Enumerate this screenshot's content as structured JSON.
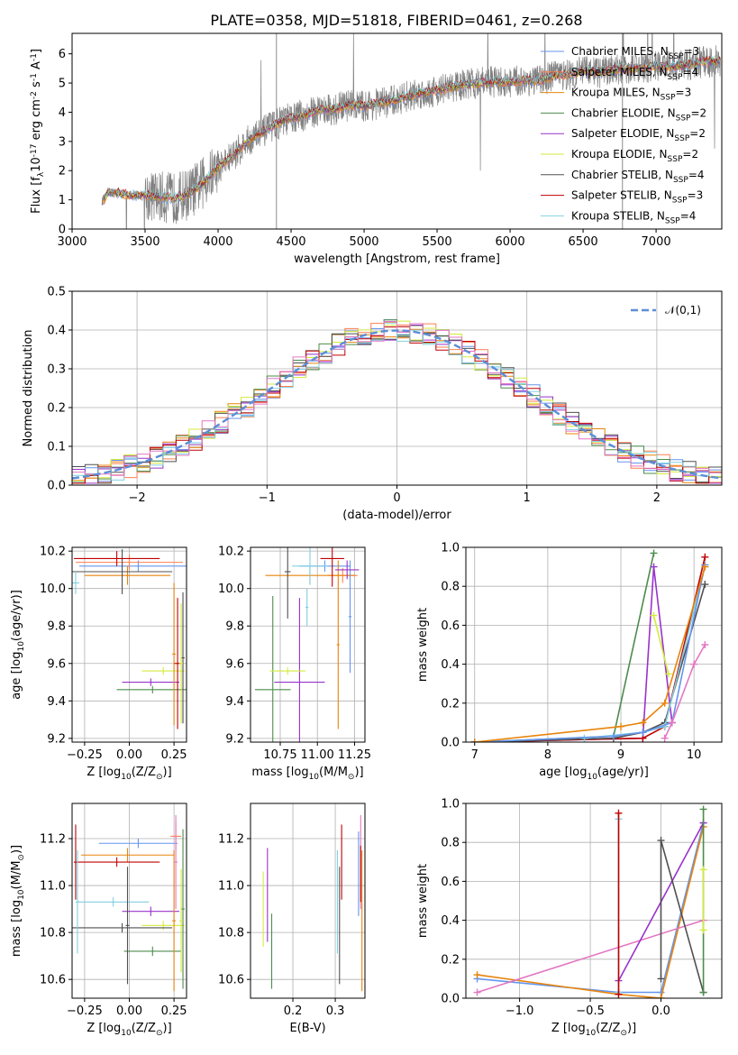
{
  "figure_title": "PLATE=0358, MJD=51818, FIBERID=0461, z=0.268",
  "colors": {
    "chabrier_miles": "#6495ed",
    "salpeter_miles": "#ff7f50",
    "kroupa_miles": "#e8840c",
    "chabrier_elodie": "#4c8c4c",
    "salpeter_elodie": "#9932cc",
    "kroupa_elodie": "#d4ea3c",
    "chabrier_stelib": "#505050",
    "salpeter_stelib": "#c00000",
    "kroupa_stelib": "#80d0e0",
    "normal": "#5b8ed6",
    "pink": "#e377c2"
  },
  "chart_data": [
    {
      "id": "spectrum",
      "type": "line",
      "xlabel": "wavelength [Angstrom, rest frame]",
      "ylabel": "Flux [f$_\\lambda$10$^{-17}$ erg cm$^{-2}$ s$^{-1}$ A$^{-1}$]",
      "xlim": [
        3000,
        7450
      ],
      "ylim": [
        0,
        6.7
      ],
      "xticks": [
        "3000",
        "3500",
        "4000",
        "4500",
        "5000",
        "5500",
        "6000",
        "6500",
        "7000"
      ],
      "yticks": [
        "0",
        "1",
        "2",
        "3",
        "4",
        "5",
        "6"
      ],
      "legend": [
        "Chabrier MILES, N$_{SSP}$=3",
        "Salpeter MILES, N$_{SSP}$=4",
        "Kroupa MILES, N$_{SSP}$=3",
        "Chabrier ELODIE, N$_{SSP}$=2",
        "Salpeter ELODIE, N$_{SSP}$=2",
        "Kroupa ELODIE, N$_{SSP}$=2",
        "Chabrier STELIB, N$_{SSP}$=4",
        "Salpeter STELIB, N$_{SSP}$=3",
        "Kroupa STELIB, N$_{SSP}$=4"
      ],
      "legend_placement": "top-right",
      "model_x": [
        3200,
        3250,
        3300,
        3400,
        3500,
        3600,
        3700,
        3800,
        3900,
        4000,
        4100,
        4200,
        4300,
        4400,
        4500,
        4600,
        4700,
        4800,
        4900,
        5000,
        5100,
        5200,
        5300,
        5400,
        5500,
        5600,
        5700,
        5800,
        5900,
        6000,
        6100,
        6200,
        6300,
        6400,
        6500,
        6600,
        6700,
        6800,
        6900,
        7000,
        7100,
        7200,
        7300,
        7400
      ],
      "model_y": [
        0.9,
        1.25,
        1.25,
        1.15,
        1.15,
        1.1,
        1.05,
        1.2,
        1.6,
        2.1,
        2.5,
        3.0,
        3.3,
        3.6,
        3.8,
        3.9,
        4.1,
        4.1,
        4.25,
        4.2,
        4.3,
        4.4,
        4.55,
        4.65,
        4.75,
        4.85,
        4.95,
        5.0,
        5.05,
        5.0,
        5.1,
        5.05,
        5.25,
        5.3,
        5.4,
        5.35,
        5.45,
        5.5,
        5.5,
        5.6,
        5.55,
        5.6,
        5.7,
        5.75
      ]
    },
    {
      "id": "residuals",
      "type": "line",
      "xlabel": "(data-model)/error",
      "ylabel": "Normed distribution",
      "xlim": [
        -2.5,
        2.5
      ],
      "ylim": [
        0,
        0.5
      ],
      "xticks": [
        "−2",
        "−1",
        "0",
        "1",
        "2"
      ],
      "yticks": [
        "0.0",
        "0.1",
        "0.2",
        "0.3",
        "0.4",
        "0.5"
      ],
      "legend": [
        "$\\mathcal{N}(0,1)$"
      ],
      "legend_placement": "top-right"
    },
    {
      "id": "age_vs_Z",
      "type": "scatter",
      "xlabel": "Z [log$_{10}$(Z/Z$_\\odot$)]",
      "ylabel": "age  [log$_{10}$(age/yr)]",
      "xlim": [
        -0.32,
        0.32
      ],
      "ylim": [
        9.18,
        10.22
      ],
      "xticks": [
        "−0.25",
        "0.00",
        "0.25"
      ],
      "yticks": [
        "9.2",
        "9.4",
        "9.6",
        "9.8",
        "10.0",
        "10.2"
      ],
      "points": [
        {
          "c": "chabrier_miles",
          "x": 0.05,
          "xe": 0.33,
          "y": 10.12,
          "ye": 0.03
        },
        {
          "c": "salpeter_miles",
          "x": 0.0,
          "xe": 0.3,
          "y": 10.14,
          "ye": 0.04
        },
        {
          "c": "kroupa_miles",
          "x": -0.01,
          "xe": 0.24,
          "y": 10.07,
          "ye": 0.05
        },
        {
          "c": "chabrier_elodie",
          "x": 0.13,
          "xe": 0.2,
          "y": 9.46,
          "ye": 0.02
        },
        {
          "c": "salpeter_elodie",
          "x": 0.12,
          "xe": 0.16,
          "y": 9.5,
          "ye": 0.02
        },
        {
          "c": "kroupa_elodie",
          "x": 0.19,
          "xe": 0.12,
          "y": 9.56,
          "ye": 0.02
        },
        {
          "c": "chabrier_stelib",
          "x": -0.04,
          "xe": 0.28,
          "y": 10.09,
          "ye": 0.12
        },
        {
          "c": "salpeter_stelib",
          "x": -0.07,
          "xe": 0.24,
          "y": 10.16,
          "ye": 0.04
        },
        {
          "c": "kroupa_stelib",
          "x": -0.3,
          "xe": 0.02,
          "y": 10.03,
          "ye": 0.06
        },
        {
          "c": "salpeter_stelib",
          "x": 0.27,
          "xe": 0.02,
          "y": 9.6,
          "ye": 0.35
        },
        {
          "c": "chabrier_stelib",
          "x": 0.3,
          "xe": 0.01,
          "y": 9.63,
          "ye": 0.35
        },
        {
          "c": "kroupa_elodie",
          "x": 0.29,
          "xe": 0.01,
          "y": 9.6,
          "ye": 0.32
        },
        {
          "c": "kroupa_miles",
          "x": 0.25,
          "xe": 0.01,
          "y": 9.65,
          "ye": 0.38
        }
      ]
    },
    {
      "id": "age_vs_mass",
      "type": "scatter",
      "xlabel": "mass [log$_{10}$(M/M$_\\odot$)]",
      "ylabel": "",
      "xlim": [
        10.55,
        11.32
      ],
      "ylim": [
        9.18,
        10.22
      ],
      "xticks": [
        "10.75",
        "11.00",
        "11.25"
      ],
      "yticks": [
        "9.2",
        "9.4",
        "9.6",
        "9.8",
        "10.0",
        "10.2"
      ],
      "points": [
        {
          "c": "chabrier_miles",
          "x": 11.05,
          "xe": 0.17,
          "y": 10.12,
          "ye": 0.03
        },
        {
          "c": "salpeter_miles",
          "x": 11.17,
          "xe": 0.1,
          "y": 10.07,
          "ye": 0.04
        },
        {
          "c": "kroupa_miles",
          "x": 10.95,
          "xe": 0.3,
          "y": 10.07,
          "ye": 0.05
        },
        {
          "c": "chabrier_elodie",
          "x": 10.7,
          "xe": 0.12,
          "y": 9.46,
          "ye": 0.5
        },
        {
          "c": "salpeter_elodie",
          "x": 10.88,
          "xe": 0.17,
          "y": 9.5,
          "ye": 0.45
        },
        {
          "c": "kroupa_elodie",
          "x": 10.8,
          "xe": 0.12,
          "y": 9.56,
          "ye": 0.02
        },
        {
          "c": "chabrier_stelib",
          "x": 10.8,
          "xe": 0.02,
          "y": 10.09,
          "ye": 0.25
        },
        {
          "c": "salpeter_stelib",
          "x": 11.1,
          "xe": 0.08,
          "y": 10.16,
          "ye": 0.15
        },
        {
          "c": "kroupa_stelib",
          "x": 10.95,
          "xe": 0.12,
          "y": 10.12,
          "ye": 0.1
        },
        {
          "c": "kroupa_stelib",
          "x": 10.93,
          "xe": 0.01,
          "y": 9.9,
          "ye": 0.1
        },
        {
          "c": "chabrier_miles",
          "x": 11.22,
          "xe": 0.01,
          "y": 9.85,
          "ye": 0.3
        },
        {
          "c": "kroupa_miles",
          "x": 11.14,
          "xe": 0.01,
          "y": 9.7,
          "ye": 0.45
        },
        {
          "c": "salpeter_elodie",
          "x": 11.2,
          "xe": 0.08,
          "y": 10.1,
          "ye": 0.05
        }
      ]
    },
    {
      "id": "weight_vs_age",
      "type": "line",
      "xlabel": "age  [log$_{10}$(age/yr)]",
      "ylabel": "mass weight",
      "xlim": [
        6.88,
        10.38
      ],
      "ylim": [
        0,
        1.0
      ],
      "xticks": [
        "7",
        "8",
        "9",
        "10"
      ],
      "yticks": [
        "0.0",
        "0.2",
        "0.4",
        "0.6",
        "0.8",
        "1.0"
      ],
      "series": [
        {
          "c": "chabrier_elodie",
          "x": [
            7.0,
            8.9,
            9.45
          ],
          "y": [
            0.0,
            0.03,
            0.97
          ]
        },
        {
          "c": "salpeter_elodie",
          "x": [
            7.0,
            9.3,
            9.45,
            9.7
          ],
          "y": [
            0.0,
            0.02,
            0.9,
            0.1
          ]
        },
        {
          "c": "kroupa_elodie",
          "x": [
            9.45,
            9.65
          ],
          "y": [
            0.65,
            0.35
          ]
        },
        {
          "c": "salpeter_stelib",
          "x": [
            7.0,
            9.3,
            9.6,
            10.15
          ],
          "y": [
            0.0,
            0.02,
            0.08,
            0.95
          ]
        },
        {
          "c": "chabrier_stelib",
          "x": [
            7.0,
            8.9,
            9.3,
            9.6,
            10.15
          ],
          "y": [
            0.0,
            0.02,
            0.05,
            0.1,
            0.81
          ]
        },
        {
          "c": "kroupa_stelib",
          "x": [
            8.5,
            9.3,
            9.6,
            10.15
          ],
          "y": [
            0.02,
            0.05,
            0.08,
            0.9
          ]
        },
        {
          "c": "chabrier_miles",
          "x": [
            7.0,
            8.9,
            9.3,
            9.7,
            10.15
          ],
          "y": [
            0.0,
            0.03,
            0.05,
            0.1,
            0.91
          ]
        },
        {
          "c": "kroupa_miles",
          "x": [
            7.0,
            9.0,
            9.3,
            9.6,
            10.15
          ],
          "y": [
            0.0,
            0.08,
            0.1,
            0.2,
            0.9
          ]
        },
        {
          "c": "pink",
          "x": [
            9.6,
            9.7,
            10.0,
            10.15
          ],
          "y": [
            0.02,
            0.1,
            0.4,
            0.5
          ]
        }
      ]
    },
    {
      "id": "mass_vs_Z",
      "type": "scatter",
      "xlabel": "Z [log$_{10}$(Z/Z$_\\odot$)]",
      "ylabel": "mass [log$_{10}$(M/M$_\\odot$)]",
      "xlim": [
        -0.32,
        0.32
      ],
      "ylim": [
        10.52,
        11.35
      ],
      "xticks": [
        "−0.25",
        "0.00",
        "0.25"
      ],
      "yticks": [
        "10.6",
        "10.8",
        "11.0",
        "11.2"
      ],
      "points": [
        {
          "c": "chabrier_miles",
          "x": 0.05,
          "xe": 0.22,
          "y": 11.18,
          "ye": 0.02
        },
        {
          "c": "salpeter_miles",
          "x": 0.26,
          "xe": 0.03,
          "y": 11.21,
          "ye": 0.06
        },
        {
          "c": "kroupa_miles",
          "x": -0.01,
          "xe": 0.26,
          "y": 11.13,
          "ye": 0.03
        },
        {
          "c": "chabrier_elodie",
          "x": 0.13,
          "xe": 0.16,
          "y": 10.72,
          "ye": 0.02
        },
        {
          "c": "salpeter_elodie",
          "x": 0.12,
          "xe": 0.16,
          "y": 10.89,
          "ye": 0.02
        },
        {
          "c": "kroupa_elodie",
          "x": 0.19,
          "xe": 0.12,
          "y": 10.83,
          "ye": 0.02
        },
        {
          "c": "chabrier_stelib",
          "x": -0.04,
          "xe": 0.28,
          "y": 10.82,
          "ye": 0.02
        },
        {
          "c": "salpeter_stelib",
          "x": -0.07,
          "xe": 0.24,
          "y": 11.1,
          "ye": 0.02
        },
        {
          "c": "kroupa_stelib",
          "x": -0.09,
          "xe": 0.2,
          "y": 10.93,
          "ye": 0.02
        },
        {
          "c": "chabrier_stelib",
          "x": -0.01,
          "xe": 0.01,
          "y": 10.83,
          "ye": 0.25
        },
        {
          "c": "salpeter_stelib",
          "x": -0.3,
          "xe": 0.01,
          "y": 11.1,
          "ye": 0.16
        },
        {
          "c": "kroupa_stelib",
          "x": -0.29,
          "xe": 0.01,
          "y": 10.93,
          "ye": 0.22
        },
        {
          "c": "kroupa_miles",
          "x": 0.25,
          "xe": 0.01,
          "y": 10.85,
          "ye": 0.3
        },
        {
          "c": "chabrier_elodie",
          "x": 0.3,
          "xe": 0.01,
          "y": 10.9,
          "ye": 0.34
        },
        {
          "c": "kroupa_elodie",
          "x": 0.29,
          "xe": 0.01,
          "y": 10.85,
          "ye": 0.22
        },
        {
          "c": "pink",
          "x": 0.26,
          "xe": 0.01,
          "y": 11.1,
          "ye": 0.2
        }
      ]
    },
    {
      "id": "mass_vs_ebv",
      "type": "scatter",
      "xlabel": "E(B-V)",
      "ylabel": "",
      "xlim": [
        0.1,
        0.37
      ],
      "ylim": [
        10.52,
        11.35
      ],
      "xticks": [
        "0.2",
        "0.3"
      ],
      "yticks": [
        "10.6",
        "10.8",
        "11.0",
        "11.2"
      ],
      "points": [
        {
          "c": "kroupa_elodie",
          "x": 0.13,
          "y": 10.9,
          "ye": 0.16
        },
        {
          "c": "salpeter_elodie",
          "x": 0.14,
          "y": 10.96,
          "ye": 0.2
        },
        {
          "c": "chabrier_elodie",
          "x": 0.15,
          "y": 10.72,
          "ye": 0.16
        },
        {
          "c": "kroupa_stelib",
          "x": 0.305,
          "y": 10.93,
          "ye": 0.22
        },
        {
          "c": "chabrier_stelib",
          "x": 0.31,
          "y": 10.83,
          "ye": 0.25
        },
        {
          "c": "salpeter_stelib",
          "x": 0.315,
          "y": 11.1,
          "ye": 0.16
        },
        {
          "c": "chabrier_miles",
          "x": 0.355,
          "y": 11.05,
          "ye": 0.18
        },
        {
          "c": "pink",
          "x": 0.36,
          "y": 11.1,
          "ye": 0.2
        },
        {
          "c": "kroupa_miles",
          "x": 0.363,
          "y": 10.85,
          "ye": 0.3
        },
        {
          "c": "salpeter_stelib",
          "x": 0.36,
          "y": 11.05,
          "ye": 0.12
        }
      ]
    },
    {
      "id": "weight_vs_Z",
      "type": "line",
      "xlabel": "Z [log$_{10}$(Z/Z$_\\odot$)]",
      "ylabel": "mass weight",
      "xlim": [
        -1.38,
        0.43
      ],
      "ylim": [
        0,
        1.0
      ],
      "xticks": [
        "−1.0",
        "−0.5",
        "0.0"
      ],
      "yticks": [
        "0.0",
        "0.2",
        "0.4",
        "0.6",
        "0.8",
        "1.0"
      ],
      "series": [
        {
          "c": "chabrier_miles",
          "x": [
            -1.3,
            -0.3,
            0.0,
            0.3
          ],
          "y": [
            0.1,
            0.03,
            0.03,
            0.9
          ]
        },
        {
          "c": "kroupa_miles",
          "x": [
            -1.3,
            -0.3,
            0.0,
            0.3
          ],
          "y": [
            0.12,
            0.02,
            0.0,
            0.88
          ]
        },
        {
          "c": "pink",
          "x": [
            -1.3,
            0.3
          ],
          "y": [
            0.03,
            0.4
          ]
        },
        {
          "c": "salpeter_elodie",
          "x": [
            -0.3,
            0.3
          ],
          "y": [
            0.09,
            0.9
          ]
        },
        {
          "c": "chabrier_stelib",
          "x": [
            0.0,
            0.0,
            0.3
          ],
          "y": [
            0.1,
            0.81,
            0.03
          ]
        },
        {
          "c": "kroupa_stelib",
          "x": [
            -0.3,
            -0.3
          ],
          "y": [
            0.03,
            0.92
          ]
        },
        {
          "c": "salpeter_stelib",
          "x": [
            -0.3,
            -0.3
          ],
          "y": [
            0.02,
            0.95
          ]
        },
        {
          "c": "chabrier_elodie",
          "x": [
            0.3,
            0.3
          ],
          "y": [
            0.03,
            0.97
          ]
        },
        {
          "c": "kroupa_elodie",
          "x": [
            0.3,
            0.3
          ],
          "y": [
            0.35,
            0.66
          ]
        }
      ]
    }
  ]
}
